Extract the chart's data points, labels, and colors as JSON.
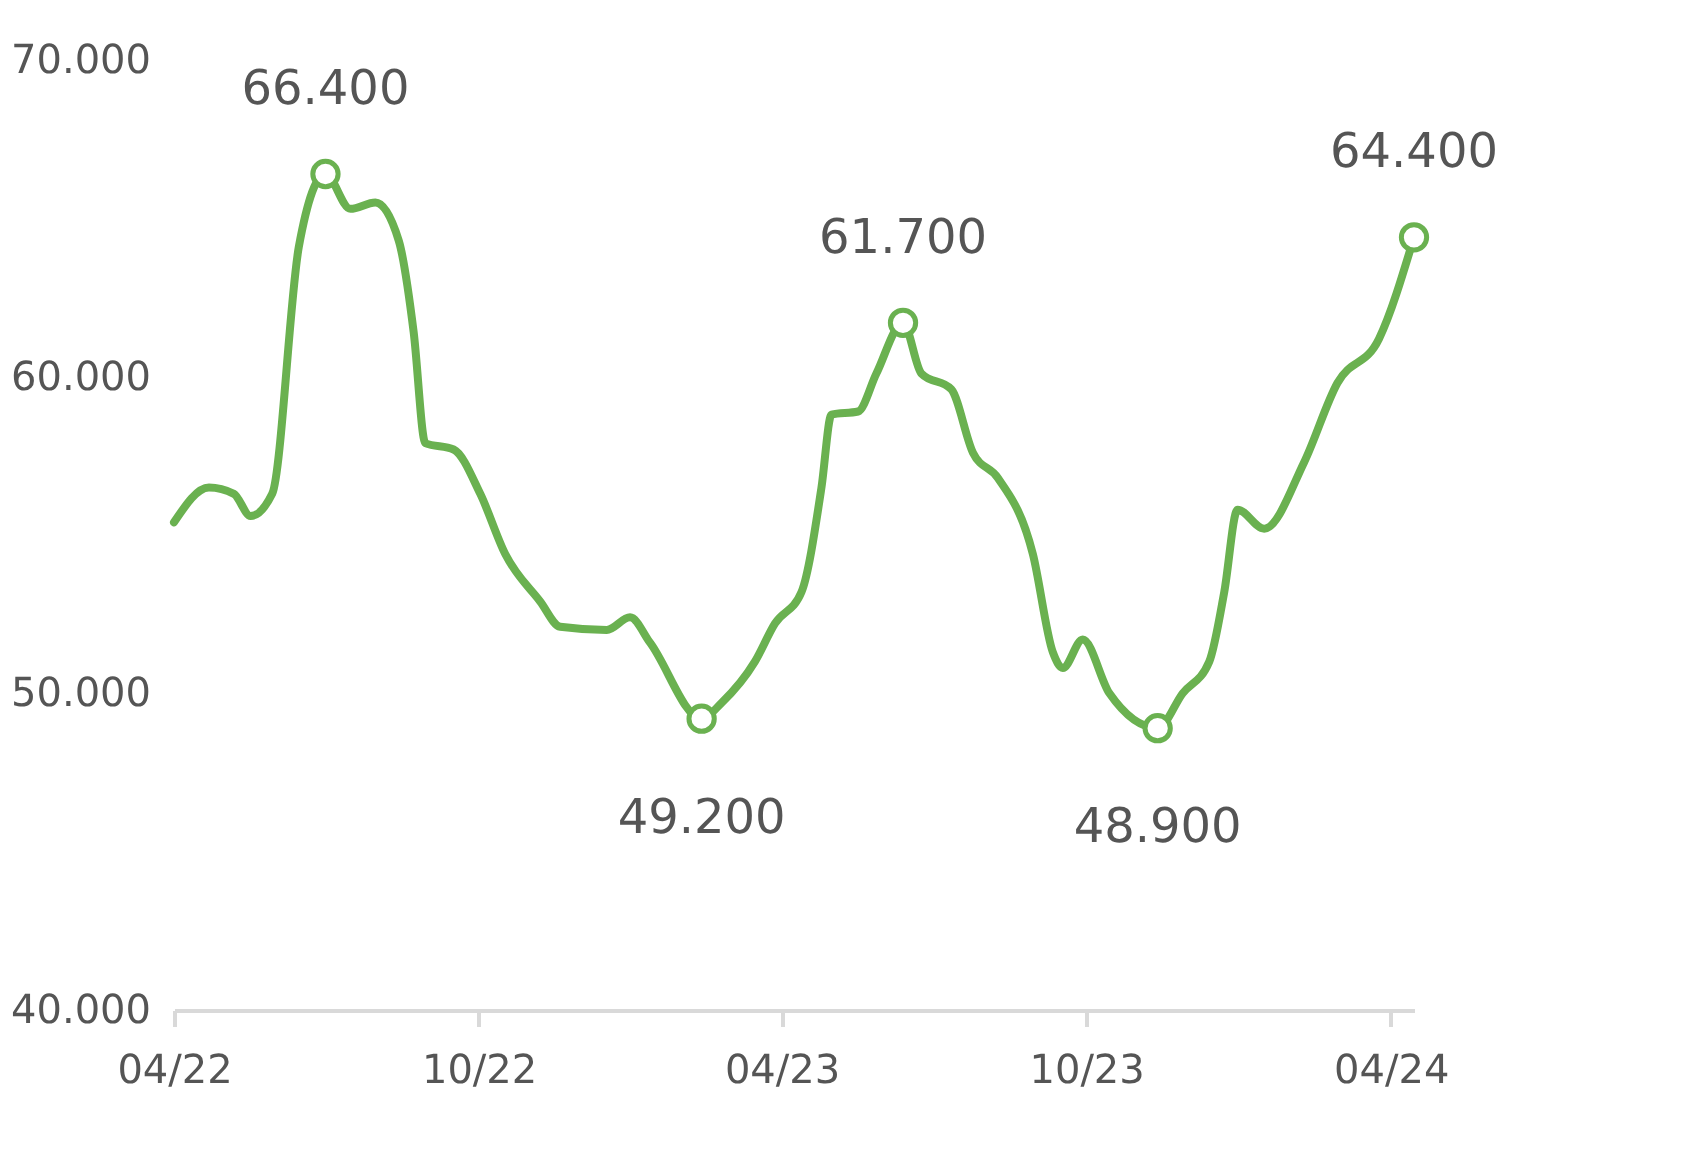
{
  "chart_data": {
    "type": "line",
    "x": [
      "2022-04-01",
      "2022-04-22",
      "2022-05-07",
      "2022-05-17",
      "2022-05-30",
      "2022-06-15",
      "2022-07-01",
      "2022-07-16",
      "2022-07-31",
      "2022-08-14",
      "2022-08-23",
      "2022-08-30",
      "2022-09-16",
      "2022-10-02",
      "2022-10-17",
      "2022-11-07",
      "2022-11-19",
      "2022-12-17",
      "2022-12-31",
      "2023-01-12",
      "2023-02-12",
      "2023-02-24",
      "2023-03-16",
      "2023-03-28",
      "2023-04-13",
      "2023-04-25",
      "2023-05-01",
      "2023-05-17",
      "2023-05-28",
      "2023-06-13",
      "2023-06-24",
      "2023-07-12",
      "2023-07-25",
      "2023-08-09",
      "2023-08-30",
      "2023-09-11",
      "2023-09-17",
      "2023-09-29",
      "2023-10-15",
      "2023-11-13",
      "2023-11-28",
      "2023-12-14",
      "2023-12-23",
      "2023-12-31",
      "2024-01-16",
      "2024-02-09",
      "2024-02-29",
      "2024-03-25",
      "2024-04-15"
    ],
    "series": [
      {
        "color": "#6ab150",
        "values": [
          55400,
          56500,
          56300,
          55600,
          56300,
          64100,
          66400,
          65300,
          65500,
          64300,
          61400,
          57900,
          57700,
          56300,
          54400,
          52900,
          52100,
          52000,
          52400,
          51600,
          49200,
          49700,
          51000,
          52200,
          53200,
          56500,
          58800,
          58900,
          60100,
          61700,
          60100,
          59600,
          57600,
          56800,
          54400,
          51300,
          50800,
          51700,
          50000,
          48900,
          50000,
          51000,
          53200,
          55800,
          55200,
          57300,
          59800,
          61200,
          64400
        ],
        "value_labels": [
          null,
          null,
          null,
          null,
          null,
          null,
          "66.400",
          null,
          null,
          null,
          null,
          null,
          null,
          null,
          null,
          null,
          null,
          null,
          null,
          null,
          "49.200",
          null,
          null,
          null,
          null,
          null,
          null,
          null,
          null,
          "61.700",
          null,
          null,
          null,
          null,
          null,
          null,
          null,
          null,
          null,
          "48.900",
          null,
          null,
          null,
          null,
          null,
          null,
          null,
          null,
          "64.400"
        ]
      }
    ],
    "xlim": [
      "2022-04-01",
      "2024-04-15"
    ],
    "xticks": [
      {
        "value": "2022-04-01",
        "label": "04/22"
      },
      {
        "value": "2022-10-01",
        "label": "10/22"
      },
      {
        "value": "2023-04-01",
        "label": "04/23"
      },
      {
        "value": "2023-10-01",
        "label": "10/23"
      },
      {
        "value": "2024-04-01",
        "label": "04/24"
      }
    ],
    "ylim": [
      40000,
      70000
    ],
    "yticks": [
      {
        "value": 40000,
        "label": "40.000"
      },
      {
        "value": 50000,
        "label": "50.000"
      },
      {
        "value": 60000,
        "label": "60.000"
      },
      {
        "value": 70000,
        "label": "70.000"
      }
    ],
    "grid": false
  }
}
